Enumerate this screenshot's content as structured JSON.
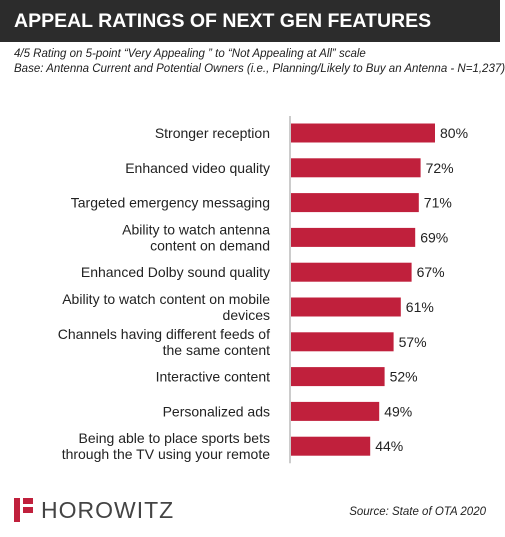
{
  "header": {
    "title": "APPEAL RATINGS OF NEXT GEN FEATURES",
    "background": "#2c2c2c"
  },
  "subtitle": {
    "line1": "4/5 Rating on 5-point “Very Appealing ” to “Not Appealing at All” scale",
    "line2": "Base: Antenna Current and Potential Owners (i.e., Planning/Likely to Buy an Antenna - N=1,237)"
  },
  "chart_data": {
    "type": "bar",
    "orientation": "horizontal",
    "bar_color": "#c0203c",
    "categories": [
      [
        "Stronger reception"
      ],
      [
        "Enhanced video quality"
      ],
      [
        "Targeted emergency messaging"
      ],
      [
        "Ability to watch antenna",
        "content on demand"
      ],
      [
        "Enhanced Dolby sound quality"
      ],
      [
        "Ability to watch content on mobile",
        "devices"
      ],
      [
        "Channels having different feeds of",
        "the same content"
      ],
      [
        "Interactive content"
      ],
      [
        "Personalized ads"
      ],
      [
        "Being able to place sports bets",
        "through the TV using your remote"
      ]
    ],
    "values": [
      80,
      72,
      71,
      69,
      67,
      61,
      57,
      52,
      49,
      44
    ],
    "value_labels": [
      "80%",
      "72%",
      "71%",
      "69%",
      "67%",
      "61%",
      "57%",
      "52%",
      "49%",
      "44%"
    ],
    "unit": "%",
    "xlim": [
      0,
      100
    ],
    "axis_line": true
  },
  "footer": {
    "logo_text": "HOROWITZ",
    "logo_color": "#c0203c",
    "source": "Source: State of OTA 2020"
  }
}
